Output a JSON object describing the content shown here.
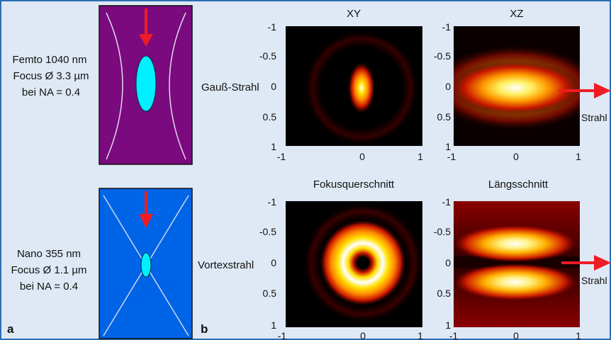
{
  "colors": {
    "frame": "#2a6fb3",
    "panel_bg": "#dfe9f5",
    "gauss_schematic_bg": "#7a0a7e",
    "vortex_schematic_bg": "#0064e6",
    "focus_spot": "#00f0ff",
    "arrow": "#ee1c24",
    "map_dark": "#000000",
    "map_red": "#c81400",
    "map_orange": "#ff8a00",
    "map_yellow": "#ffe000",
    "map_white": "#ffffff"
  },
  "panel_labels": {
    "a": "a",
    "b": "b"
  },
  "schematics": {
    "femto": {
      "line1": "Femto 1040 nm",
      "line2": "Focus Ø 3.3 µm",
      "line3": "bei  NA = 0.4"
    },
    "nano": {
      "line1": "Nano 355 nm",
      "line2": "Focus Ø 1.1 µm",
      "line3": "bei  NA = 0.4"
    }
  },
  "beam_labels": {
    "gauss": "Gauß-Strahl",
    "vortex": "Vortexstrahl"
  },
  "column_titles": {
    "xy": "XY",
    "xz": "XZ",
    "focus_cross_section": "Fokusquerschnitt",
    "longitudinal": "Längsschnitt"
  },
  "side_labels": {
    "top": "Strahl",
    "bottom": "Strahl"
  },
  "axes": {
    "y_ticks": [
      "-1",
      "-0.5",
      "0",
      "0.5",
      "1"
    ],
    "x_ticks": [
      "-1",
      "0",
      "1"
    ],
    "range": [
      -1,
      1
    ]
  },
  "chart_data": [
    {
      "type": "heatmap",
      "panel": "XY",
      "beam": "Gauß-Strahl",
      "pattern": "gaussian-spot",
      "center": [
        0,
        0
      ],
      "width_x": 0.09,
      "width_y": 0.22,
      "xlim": [
        -1,
        1
      ],
      "ylim": [
        -1,
        1
      ]
    },
    {
      "type": "heatmap",
      "panel": "XZ",
      "beam": "Gauß-Strahl",
      "pattern": "elongated-spot",
      "center": [
        0,
        0
      ],
      "width_x": 0.55,
      "width_y": 0.19,
      "xlim": [
        -1,
        1
      ],
      "ylim": [
        -1,
        1
      ]
    },
    {
      "type": "heatmap",
      "panel": "Fokusquerschnitt",
      "beam": "Vortexstrahl",
      "pattern": "ring",
      "ring_radius": 0.3,
      "xlim": [
        -1,
        1
      ],
      "ylim": [
        -1,
        1
      ]
    },
    {
      "type": "heatmap",
      "panel": "Längsschnitt",
      "beam": "Vortexstrahl",
      "pattern": "double-lobe",
      "lobe_centers_z": [
        -0.3,
        0.3
      ],
      "xlim": [
        -1,
        1
      ],
      "ylim": [
        -1,
        1
      ]
    }
  ]
}
